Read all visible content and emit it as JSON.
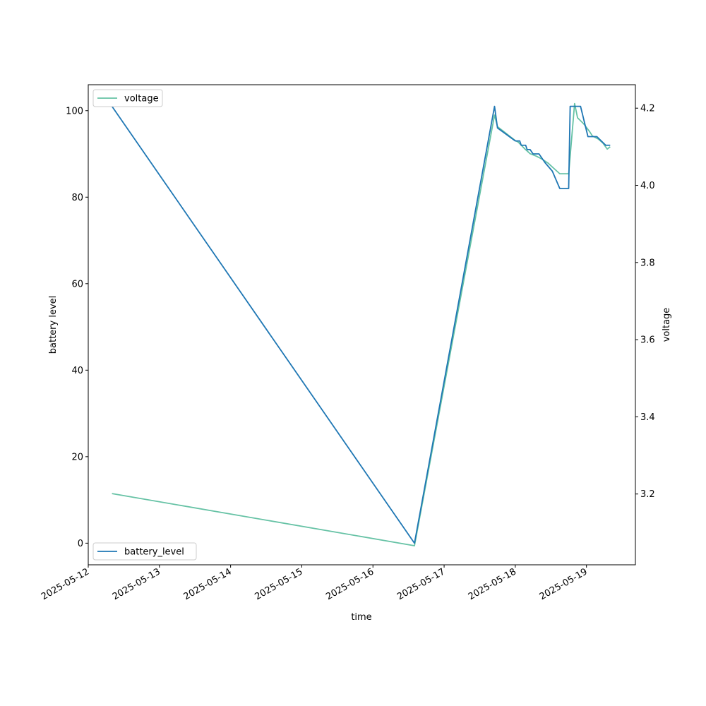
{
  "chart_data": {
    "type": "line",
    "title": "",
    "xlabel": "time",
    "ylabel_left": "battery level",
    "ylabel_right": "voltage",
    "x_type": "datetime",
    "xlim": [
      "2025-05-12T00:00",
      "2025-05-19T16:30"
    ],
    "ylim_left": [
      -5,
      106
    ],
    "ylim_right": [
      3.0165,
      4.2608
    ],
    "x_ticks": [
      "2025-05-12",
      "2025-05-13",
      "2025-05-14",
      "2025-05-15",
      "2025-05-16",
      "2025-05-17",
      "2025-05-18",
      "2025-05-19"
    ],
    "y_ticks_left": [
      0,
      20,
      40,
      60,
      80,
      100
    ],
    "y_ticks_right": [
      3.2,
      3.4,
      3.6,
      3.8,
      4.0,
      4.2
    ],
    "grid": false,
    "legends": [
      {
        "series": "voltage",
        "placement": "upper-left"
      },
      {
        "series": "battery_level",
        "placement": "lower-left"
      }
    ],
    "series": [
      {
        "name": "battery_level",
        "axis": "left",
        "color": "#1f77b4",
        "points": [
          [
            "2025-05-12T08:00",
            101
          ],
          [
            "2025-05-16T14:00",
            0
          ],
          [
            "2025-05-17T17:00",
            101
          ],
          [
            "2025-05-17T18:00",
            96
          ],
          [
            "2025-05-17T20:00",
            95
          ],
          [
            "2025-05-17T22:00",
            94
          ],
          [
            "2025-05-18T00:00",
            93
          ],
          [
            "2025-05-18T01:30",
            93
          ],
          [
            "2025-05-18T02:00",
            92
          ],
          [
            "2025-05-18T03:30",
            92
          ],
          [
            "2025-05-18T04:00",
            91
          ],
          [
            "2025-05-18T05:00",
            91
          ],
          [
            "2025-05-18T06:00",
            90
          ],
          [
            "2025-05-18T08:00",
            90
          ],
          [
            "2025-05-18T10:00",
            88
          ],
          [
            "2025-05-18T12:30",
            86
          ],
          [
            "2025-05-18T15:00",
            82
          ],
          [
            "2025-05-18T18:00",
            82
          ],
          [
            "2025-05-18T18:30",
            101
          ],
          [
            "2025-05-18T22:00",
            101
          ],
          [
            "2025-05-19T00:30",
            94
          ],
          [
            "2025-05-19T03:30",
            94
          ],
          [
            "2025-05-19T05:00",
            93
          ],
          [
            "2025-05-19T06:30",
            92
          ],
          [
            "2025-05-19T08:00",
            92
          ]
        ]
      },
      {
        "name": "voltage",
        "axis": "right",
        "color": "#66c2a5",
        "points": [
          [
            "2025-05-12T08:00",
            3.201
          ],
          [
            "2025-05-16T14:00",
            3.066
          ],
          [
            "2025-05-17T17:00",
            4.182
          ],
          [
            "2025-05-17T18:00",
            4.152
          ],
          [
            "2025-05-17T20:00",
            4.14
          ],
          [
            "2025-05-17T22:00",
            4.128
          ],
          [
            "2025-05-18T00:00",
            4.116
          ],
          [
            "2025-05-18T01:00",
            4.112
          ],
          [
            "2025-05-18T03:00",
            4.096
          ],
          [
            "2025-05-18T05:00",
            4.082
          ],
          [
            "2025-05-18T07:00",
            4.076
          ],
          [
            "2025-05-18T09:00",
            4.068
          ],
          [
            "2025-05-18T11:00",
            4.058
          ],
          [
            "2025-05-18T13:00",
            4.044
          ],
          [
            "2025-05-18T15:00",
            4.03
          ],
          [
            "2025-05-18T18:00",
            4.03
          ],
          [
            "2025-05-18T20:00",
            4.212
          ],
          [
            "2025-05-18T21:00",
            4.175
          ],
          [
            "2025-05-18T23:00",
            4.16
          ],
          [
            "2025-05-19T01:00",
            4.14
          ],
          [
            "2025-05-19T02:00",
            4.128
          ],
          [
            "2025-05-19T04:00",
            4.12
          ],
          [
            "2025-05-19T05:30",
            4.11
          ],
          [
            "2025-05-19T07:00",
            4.094
          ],
          [
            "2025-05-19T08:00",
            4.1
          ]
        ]
      }
    ]
  }
}
